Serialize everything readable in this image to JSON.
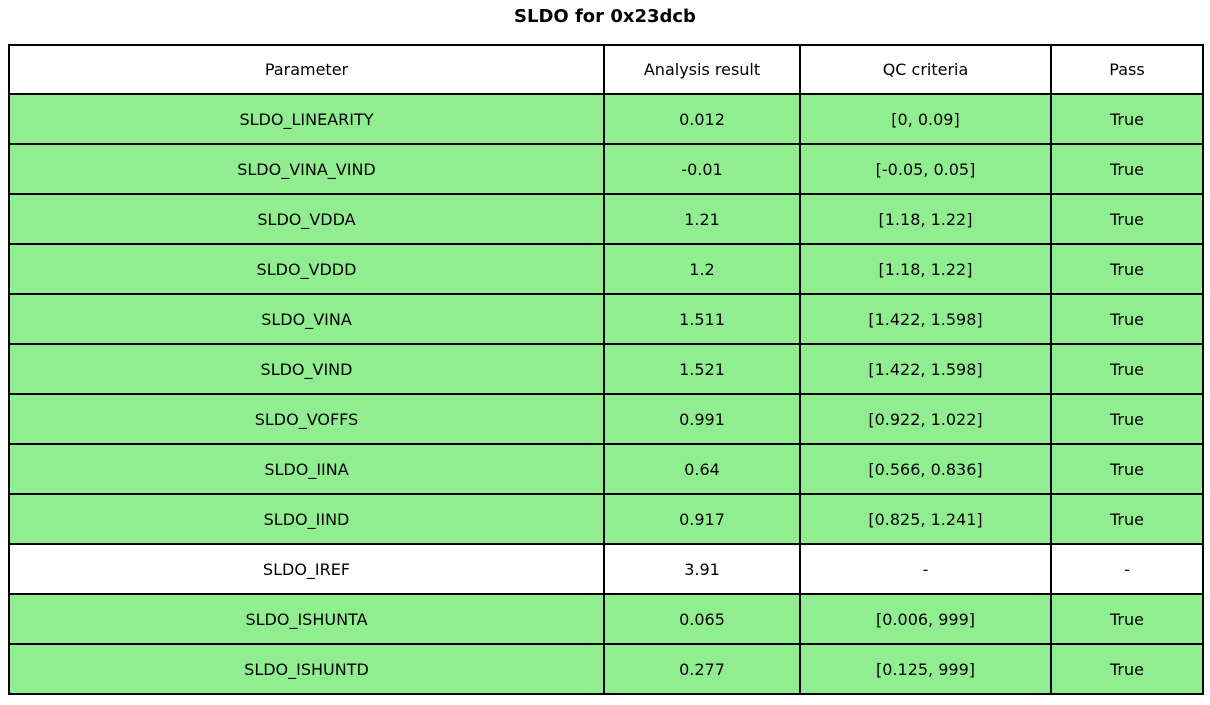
{
  "title": "SLDO for 0x23dcb",
  "colors": {
    "row_pass_green": "#90EE90",
    "row_neutral_white": "#ffffff",
    "border": "#000000",
    "text": "#000000",
    "background": "#ffffff"
  },
  "table": {
    "headers": [
      "Parameter",
      "Analysis result",
      "QC criteria",
      "Pass"
    ],
    "rows": [
      {
        "parameter": "SLDO_LINEARITY",
        "result": "0.012",
        "criteria": "[0, 0.09]",
        "pass": "True",
        "highlight": true
      },
      {
        "parameter": "SLDO_VINA_VIND",
        "result": "-0.01",
        "criteria": "[-0.05, 0.05]",
        "pass": "True",
        "highlight": true
      },
      {
        "parameter": "SLDO_VDDA",
        "result": "1.21",
        "criteria": "[1.18, 1.22]",
        "pass": "True",
        "highlight": true
      },
      {
        "parameter": "SLDO_VDDD",
        "result": "1.2",
        "criteria": "[1.18, 1.22]",
        "pass": "True",
        "highlight": true
      },
      {
        "parameter": "SLDO_VINA",
        "result": "1.511",
        "criteria": "[1.422, 1.598]",
        "pass": "True",
        "highlight": true
      },
      {
        "parameter": "SLDO_VIND",
        "result": "1.521",
        "criteria": "[1.422, 1.598]",
        "pass": "True",
        "highlight": true
      },
      {
        "parameter": "SLDO_VOFFS",
        "result": "0.991",
        "criteria": "[0.922, 1.022]",
        "pass": "True",
        "highlight": true
      },
      {
        "parameter": "SLDO_IINA",
        "result": "0.64",
        "criteria": "[0.566, 0.836]",
        "pass": "True",
        "highlight": true
      },
      {
        "parameter": "SLDO_IIND",
        "result": "0.917",
        "criteria": "[0.825, 1.241]",
        "pass": "True",
        "highlight": true
      },
      {
        "parameter": "SLDO_IREF",
        "result": "3.91",
        "criteria": "-",
        "pass": "-",
        "highlight": false
      },
      {
        "parameter": "SLDO_ISHUNTA",
        "result": "0.065",
        "criteria": "[0.006, 999]",
        "pass": "True",
        "highlight": true
      },
      {
        "parameter": "SLDO_ISHUNTD",
        "result": "0.277",
        "criteria": "[0.125, 999]",
        "pass": "True",
        "highlight": true
      }
    ]
  },
  "chart_data": {
    "type": "table",
    "title": "SLDO for 0x23dcb",
    "columns": [
      "Parameter",
      "Analysis result",
      "QC criteria",
      "Pass"
    ],
    "rows": [
      [
        "SLDO_LINEARITY",
        0.012,
        "[0, 0.09]",
        "True"
      ],
      [
        "SLDO_VINA_VIND",
        -0.01,
        "[-0.05, 0.05]",
        "True"
      ],
      [
        "SLDO_VDDA",
        1.21,
        "[1.18, 1.22]",
        "True"
      ],
      [
        "SLDO_VDDD",
        1.2,
        "[1.18, 1.22]",
        "True"
      ],
      [
        "SLDO_VINA",
        1.511,
        "[1.422, 1.598]",
        "True"
      ],
      [
        "SLDO_VIND",
        1.521,
        "[1.422, 1.598]",
        "True"
      ],
      [
        "SLDO_VOFFS",
        0.991,
        "[0.922, 1.022]",
        "True"
      ],
      [
        "SLDO_IINA",
        0.64,
        "[0.566, 0.836]",
        "True"
      ],
      [
        "SLDO_IIND",
        0.917,
        "[0.825, 1.241]",
        "True"
      ],
      [
        "SLDO_IREF",
        3.91,
        "-",
        "-"
      ],
      [
        "SLDO_ISHUNTA",
        0.065,
        "[0.006, 999]",
        "True"
      ],
      [
        "SLDO_ISHUNTD",
        0.277,
        "[0.125, 999]",
        "True"
      ]
    ],
    "layout": {
      "row_color_pass": "#90EE90",
      "row_color_neutral": "#ffffff",
      "grid": true,
      "header_background": "#ffffff"
    }
  }
}
